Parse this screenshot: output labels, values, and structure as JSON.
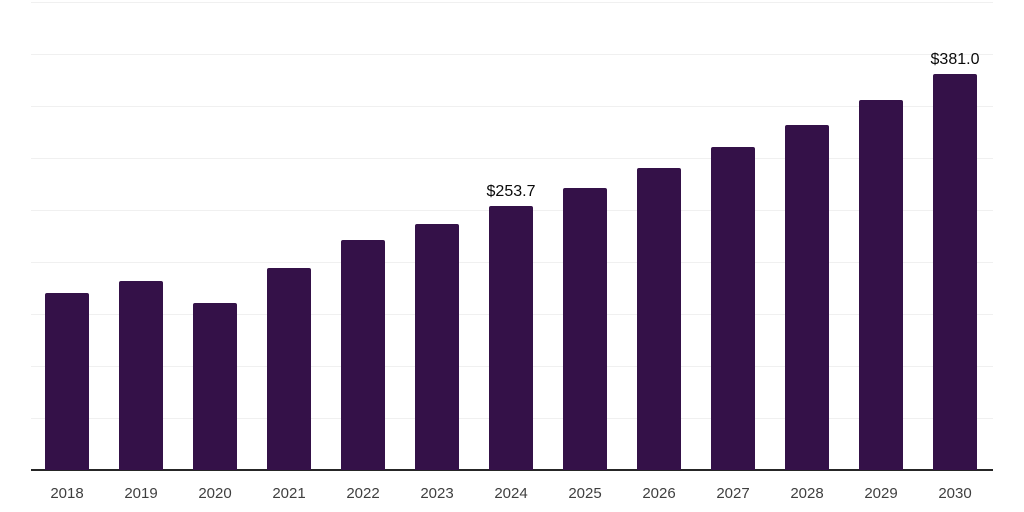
{
  "chart_data": {
    "type": "bar",
    "title": "",
    "xlabel": "",
    "ylabel": "",
    "categories": [
      "2018",
      "2019",
      "2020",
      "2021",
      "2022",
      "2023",
      "2024",
      "2025",
      "2026",
      "2027",
      "2028",
      "2029",
      "2030"
    ],
    "values": [
      170.0,
      181.5,
      161.0,
      194.5,
      221.5,
      236.5,
      253.7,
      271.0,
      290.0,
      310.5,
      332.0,
      355.5,
      381.0
    ],
    "annotations": [
      {
        "category": "2024",
        "text": "$253.7"
      },
      {
        "category": "2030",
        "text": "$381.0"
      }
    ],
    "ylim": [
      0,
      450
    ],
    "grid": {
      "visible": true,
      "interval": 50
    },
    "legend_position": "none"
  },
  "colors": {
    "bar": "#341148",
    "gridline": "#f0f0f0",
    "axis": "#262626",
    "tick_label": "#3f3f3f",
    "data_label": "#0a0a0a",
    "background": "#ffffff"
  }
}
